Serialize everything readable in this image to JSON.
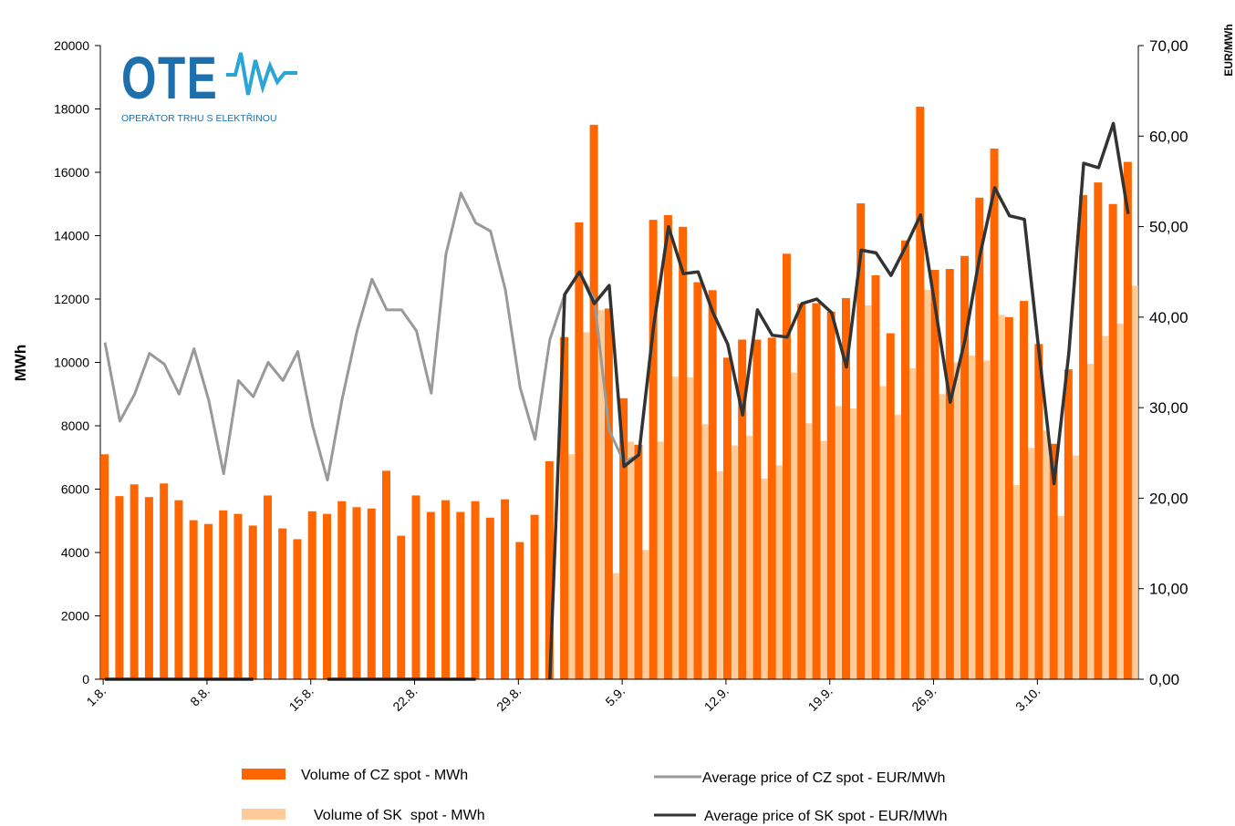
{
  "logo": {
    "name": "OTE",
    "tagline": "OPERÁTOR TRHU S ELEKTŘINOU"
  },
  "chart_data": {
    "type": "bar_line",
    "y_label": "MWh",
    "y2_label": "EUR/MWh",
    "categories": [
      "1.8.",
      null,
      null,
      null,
      null,
      null,
      null,
      "8.8.",
      null,
      null,
      null,
      null,
      null,
      null,
      "15.8.",
      null,
      null,
      null,
      null,
      null,
      null,
      "22.8.",
      null,
      null,
      null,
      null,
      null,
      null,
      "29.8.",
      null,
      null,
      null,
      null,
      null,
      null,
      "5.9.",
      null,
      null,
      null,
      null,
      null,
      null,
      "12.9.",
      null,
      null,
      null,
      null,
      null,
      null,
      "19.9.",
      null,
      null,
      null,
      null,
      null,
      null,
      "26.9.",
      null,
      null,
      null,
      null,
      null,
      null,
      "3.10.",
      null,
      null,
      null,
      null,
      null,
      null
    ],
    "series": [
      {
        "name": "Volume of CZ spot - MWh",
        "kind": "bar",
        "color": "#ff6600",
        "values": [
          7100,
          5780,
          6150,
          5750,
          6180,
          5650,
          5020,
          4900,
          5330,
          5220,
          4850,
          5800,
          4760,
          4420,
          5300,
          5220,
          5620,
          5430,
          5390,
          6580,
          4530,
          5800,
          5280,
          5650,
          5280,
          5620,
          5100,
          5680,
          4330,
          5190,
          6880,
          10800,
          14420,
          17500,
          11700,
          8870,
          7400,
          14500,
          14650,
          14280,
          12530,
          12280,
          10150,
          10720,
          10720,
          10780,
          13430,
          11850,
          11870,
          11600,
          12030,
          15020,
          12750,
          10920,
          13850,
          18070,
          12920,
          12950,
          13360,
          15200,
          16750,
          11430,
          11940,
          10580,
          7430,
          9780,
          15280,
          15680,
          15000,
          16330
        ]
      },
      {
        "name": "Volume of SK  spot - MWh",
        "kind": "bar",
        "color": "#ffcc99",
        "values": [
          null,
          null,
          null,
          null,
          null,
          null,
          null,
          null,
          null,
          null,
          null,
          null,
          null,
          null,
          null,
          null,
          null,
          null,
          null,
          null,
          null,
          null,
          null,
          null,
          null,
          null,
          null,
          null,
          null,
          null,
          null,
          7100,
          10950,
          11650,
          3350,
          7500,
          4080,
          7500,
          9550,
          9530,
          8050,
          6560,
          7380,
          7680,
          6330,
          6750,
          9680,
          8080,
          7520,
          8620,
          8550,
          11800,
          9250,
          8340,
          9820,
          12290,
          9000,
          10000,
          10220,
          10060,
          11500,
          6130,
          7300,
          7850,
          5150,
          7060,
          9960,
          10830,
          11220,
          12420
        ]
      },
      {
        "name": "Average price of CZ spot - EUR/MWh",
        "kind": "line",
        "axis": "y2",
        "color": "#999999",
        "values": [
          37.2,
          28.5,
          31.5,
          36,
          34.8,
          31.5,
          36.5,
          30.8,
          22.7,
          33,
          31.2,
          35,
          33,
          36.2,
          28,
          22,
          31,
          38.5,
          44.2,
          40.8,
          40.8,
          38.5,
          31.6,
          47,
          53.7,
          50.4,
          49.5,
          43,
          32.2,
          26.5,
          37.5,
          42.5,
          45,
          42,
          27.5,
          24,
          24.8,
          39,
          50,
          44.8,
          45,
          40.5,
          37,
          29.2,
          40.8,
          38,
          37.8,
          41.5,
          42,
          40.5,
          34.5,
          47.4,
          47.1,
          44.6,
          47.8,
          51.3,
          41,
          30.6,
          37.5,
          46.8,
          54.3,
          51.2,
          50.8,
          36,
          21.6,
          36,
          57,
          56.5,
          61.4,
          51.4
        ]
      },
      {
        "name": "Average price of SK spot - EUR/MWh",
        "kind": "line",
        "axis": "y2",
        "color": "#333333",
        "values": [
          0,
          0,
          0,
          0,
          0,
          0,
          0,
          0,
          0,
          0,
          0,
          null,
          null,
          null,
          null,
          0,
          0,
          0,
          0,
          0,
          0,
          0,
          0,
          0,
          0,
          0,
          null,
          null,
          null,
          null,
          0,
          42.5,
          45,
          41.5,
          43.5,
          23.5,
          24.8,
          39,
          50,
          44.8,
          45,
          40.5,
          37,
          29.2,
          40.8,
          38,
          37.8,
          41.5,
          42,
          40.5,
          34.5,
          47.4,
          47.1,
          44.6,
          47.8,
          51.3,
          41,
          30.6,
          37.5,
          46.8,
          54.3,
          51.2,
          50.8,
          36,
          21.6,
          36,
          57,
          56.5,
          61.4,
          51.4
        ]
      }
    ],
    "ylim": [
      0,
      20000
    ],
    "yticks": [
      0,
      2000,
      4000,
      6000,
      8000,
      10000,
      12000,
      14000,
      16000,
      18000,
      20000
    ],
    "y2lim": [
      0,
      70
    ],
    "y2ticks": [
      {
        "value": 0,
        "label": "0,00"
      },
      {
        "value": 10,
        "label": "10,00"
      },
      {
        "value": 20,
        "label": "20,00"
      },
      {
        "value": 30,
        "label": "30,00"
      },
      {
        "value": 40,
        "label": "40,00"
      },
      {
        "value": 50,
        "label": "50,00"
      },
      {
        "value": 60,
        "label": "60,00"
      },
      {
        "value": 70,
        "label": "70,00"
      }
    ]
  }
}
